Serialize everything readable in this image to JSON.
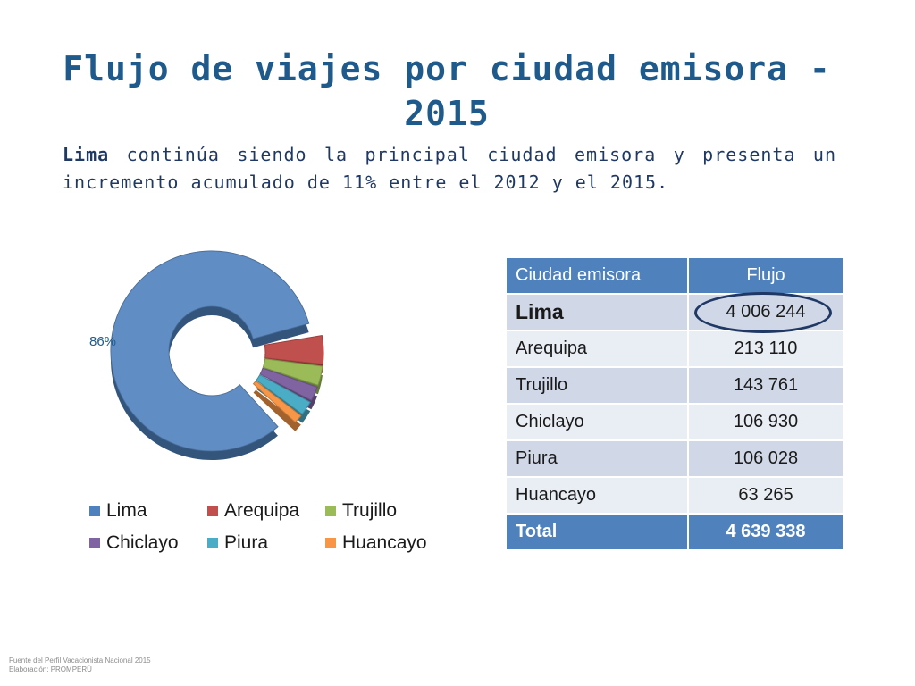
{
  "slide": {
    "title": "Flujo de viajes por ciudad emisora - 2015",
    "subtitle_bold": "Lima",
    "subtitle_rest": " continúa siendo la principal ciudad emisora y presenta un incremento acumulado de 11% entre el 2012 y el 2015.",
    "footnote_source": "Fuente del Perfil Vacacionista Nacional 2015",
    "footnote_credit": "Elaboración: PROMPERÚ"
  },
  "chart_data": {
    "type": "pie",
    "style": "3d doughnut, Lima slice exploded",
    "categories": [
      "Lima",
      "Arequipa",
      "Trujillo",
      "Chiclayo",
      "Piura",
      "Huancayo"
    ],
    "values": [
      4006244,
      213110,
      143761,
      106930,
      106028,
      63265
    ],
    "data_labels": [
      "86%",
      "",
      "",
      "",
      "",
      ""
    ],
    "colors": [
      "#4f81bd",
      "#c0504d",
      "#9bbb59",
      "#8064a2",
      "#4bacc6",
      "#f79646"
    ],
    "legend_position": "bottom"
  },
  "table": {
    "headers": [
      "Ciudad emisora",
      "Flujo"
    ],
    "rows": [
      [
        "Lima",
        "4 006 244"
      ],
      [
        "Arequipa",
        "213 110"
      ],
      [
        "Trujillo",
        "143 761"
      ],
      [
        "Chiclayo",
        "106 930"
      ],
      [
        "Piura",
        "106 028"
      ],
      [
        "Huancayo",
        "63 265"
      ]
    ],
    "total": [
      "Total",
      "4 639 338"
    ]
  }
}
